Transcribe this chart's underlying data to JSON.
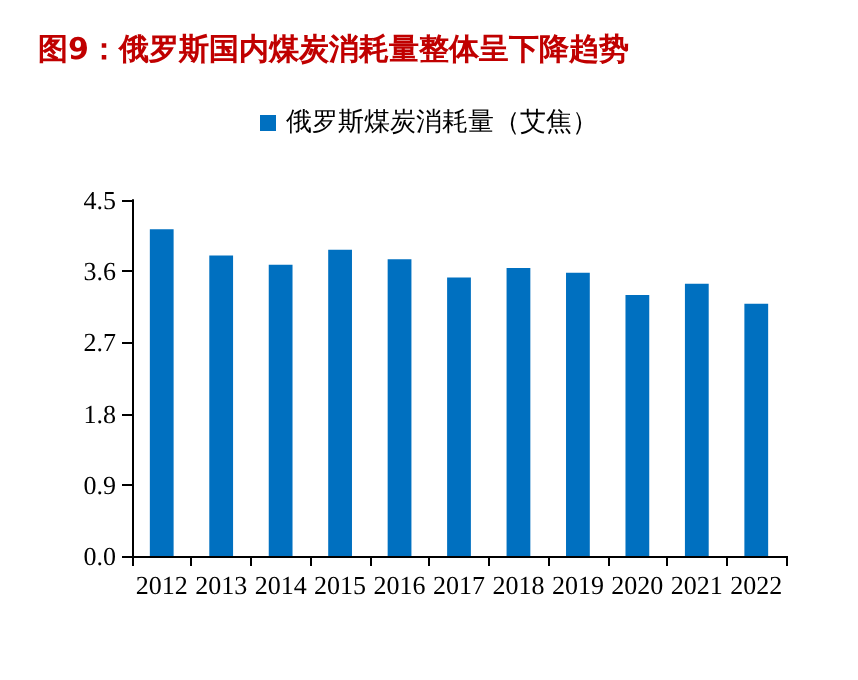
{
  "chart_data": {
    "type": "bar",
    "title": "图9：俄罗斯国内煤炭消耗量整体呈下降趋势",
    "categories": [
      "2012",
      "2013",
      "2014",
      "2015",
      "2016",
      "2017",
      "2018",
      "2019",
      "2020",
      "2021",
      "2022"
    ],
    "series": [
      {
        "name": "俄罗斯煤炭消耗量（艾焦）",
        "color": "#0070c0",
        "values": [
          4.13,
          3.8,
          3.68,
          3.87,
          3.75,
          3.52,
          3.64,
          3.58,
          3.3,
          3.44,
          3.19
        ]
      }
    ],
    "ylim": [
      0,
      4.5
    ],
    "yticks": [
      {
        "value": 0,
        "label": "0.0"
      },
      {
        "value": 0.9,
        "label": "0.9"
      },
      {
        "value": 1.8,
        "label": "1.8"
      },
      {
        "value": 2.7,
        "label": "2.7"
      },
      {
        "value": 3.6,
        "label": "3.6"
      },
      {
        "value": 4.5,
        "label": "4.5"
      }
    ],
    "grid": false,
    "legend": "top"
  }
}
